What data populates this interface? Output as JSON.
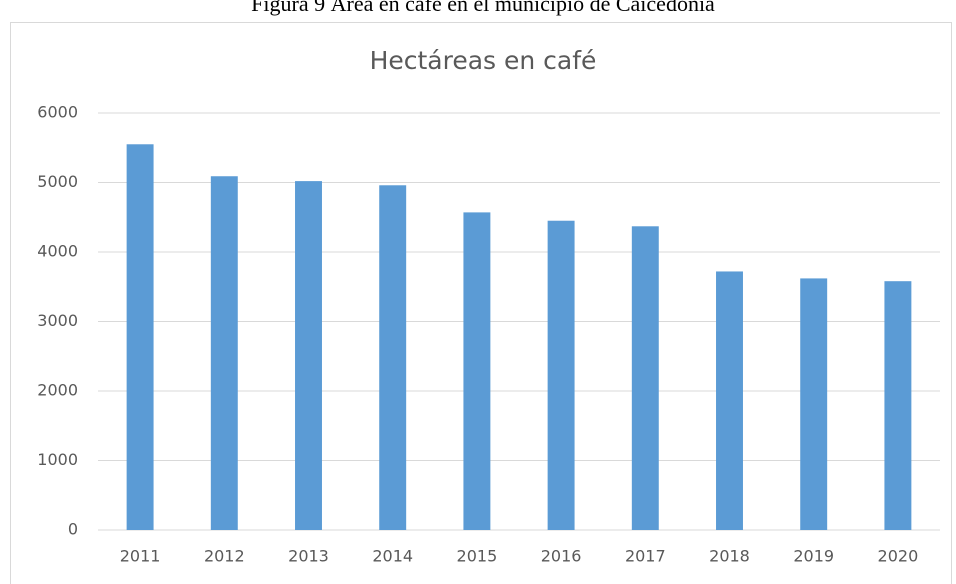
{
  "caption": "Figura 9 Área en café en el municipio de Caicedonia",
  "chart_data": {
    "type": "bar",
    "title": "Hectáreas en café",
    "categories": [
      "2011",
      "2012",
      "2013",
      "2014",
      "2015",
      "2016",
      "2017",
      "2018",
      "2019",
      "2020"
    ],
    "values": [
      5550,
      5090,
      5020,
      4960,
      4570,
      4450,
      4370,
      3720,
      3620,
      3580
    ],
    "color": "#5b9bd5",
    "ylim": [
      0,
      6000
    ],
    "yticks": [
      0,
      1000,
      2000,
      3000,
      4000,
      5000,
      6000
    ],
    "grid": true
  }
}
